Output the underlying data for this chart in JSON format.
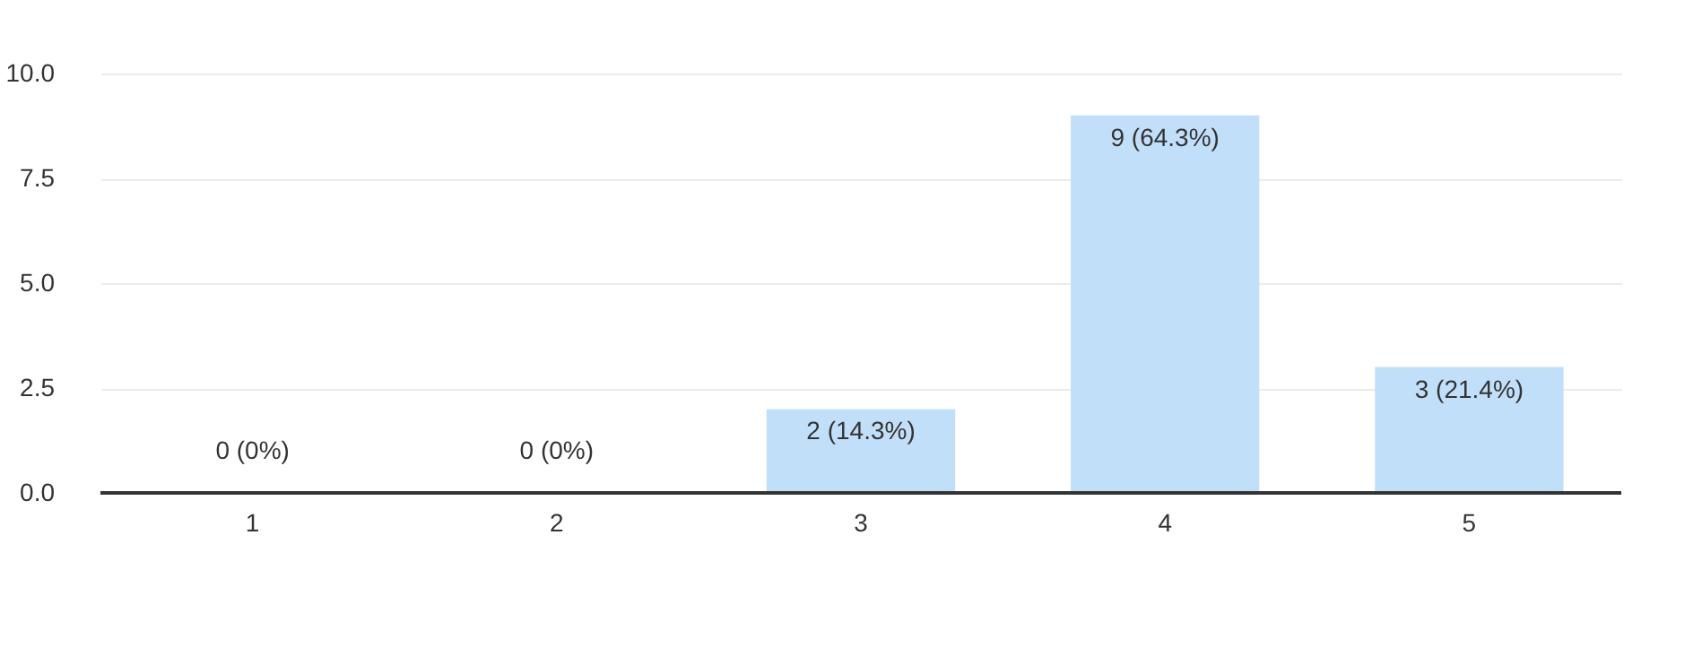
{
  "chart_data": {
    "type": "bar",
    "categories": [
      "1",
      "2",
      "3",
      "4",
      "5"
    ],
    "values": [
      0,
      0,
      2,
      9,
      3
    ],
    "color": "#c2dffa",
    "ylim": [
      0,
      10
    ],
    "yticks": [
      {
        "value": 0,
        "label": "0.0"
      },
      {
        "value": 2.5,
        "label": "2.5"
      },
      {
        "value": 5,
        "label": "5.0"
      },
      {
        "value": 7.5,
        "label": "7.5"
      },
      {
        "value": 10,
        "label": "10.0"
      }
    ],
    "grid": "y",
    "value_labels": [
      "0 (0%)",
      "0 (0%)",
      "2 (14.3%)",
      "9 (64.3%)",
      "3 (21.4%)"
    ]
  }
}
